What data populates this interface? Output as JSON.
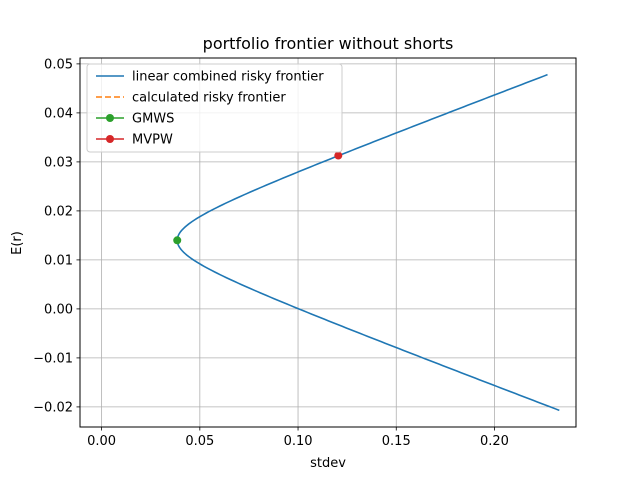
{
  "chart_data": {
    "type": "line",
    "title": "portfolio frontier without shorts",
    "xlabel": "stdev",
    "ylabel": "E(r)",
    "xlim": [
      -0.011,
      0.2415
    ],
    "ylim": [
      -0.0241,
      0.0512
    ],
    "xticks": [
      0.0,
      0.05,
      0.1,
      0.15,
      0.2
    ],
    "xtick_labels": [
      "0.00",
      "0.05",
      "0.10",
      "0.15",
      "0.20"
    ],
    "yticks": [
      -0.02,
      -0.01,
      0.0,
      0.01,
      0.02,
      0.03,
      0.04,
      0.05
    ],
    "ytick_labels": [
      "−0.02",
      "−0.01",
      "0.00",
      "0.01",
      "0.02",
      "0.03",
      "0.04",
      "0.05"
    ],
    "grid": true,
    "legend_position": "upper-left",
    "frontier": {
      "gmv_stdev": 0.0385,
      "gmv_return": 0.014,
      "upper_end": [
        0.227,
        0.0478
      ],
      "lower_end": [
        0.233,
        -0.0207
      ]
    },
    "series": [
      {
        "name": "linear combined risky frontier",
        "color": "#1f77b4",
        "style": "solid"
      },
      {
        "name": "calculated risky frontier",
        "color": "#ff7f0e",
        "style": "dashed"
      },
      {
        "name": "GMWS",
        "color": "#2ca02c",
        "style": "marker",
        "x": 0.0385,
        "y": 0.014
      },
      {
        "name": "MVPW",
        "color": "#d62728",
        "style": "marker",
        "x": 0.1205,
        "y": 0.0313
      }
    ]
  }
}
